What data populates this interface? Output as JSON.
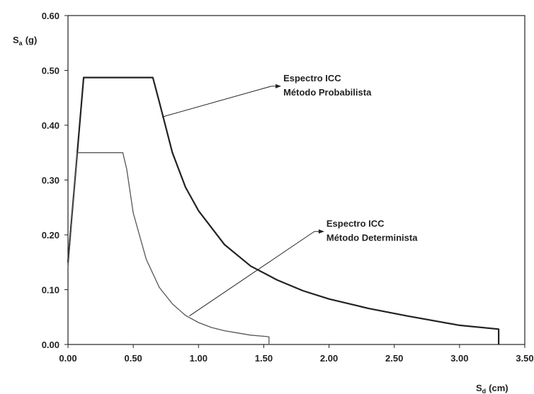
{
  "chart_data": {
    "type": "line",
    "xlabel": "Sd (cm)",
    "xlabel_main": "S",
    "xlabel_sub": "d",
    "xlabel_unit": "(cm)",
    "ylabel": "Sa (g)",
    "ylabel_main": "S",
    "ylabel_sub": "a",
    "ylabel_unit": "(g)",
    "xlim": [
      0,
      3.5
    ],
    "ylim": [
      0,
      0.6
    ],
    "xticks": [
      "0.00",
      "0.50",
      "1.00",
      "1.50",
      "2.00",
      "2.50",
      "3.00",
      "3.50"
    ],
    "yticks": [
      "0.00",
      "0.10",
      "0.20",
      "0.30",
      "0.40",
      "0.50",
      "0.60"
    ],
    "grid": false,
    "series": [
      {
        "name": "Espectro ICC Método Probabilista",
        "color": "#222222",
        "x": [
          0,
          0.12,
          0.65,
          0.7,
          0.8,
          0.9,
          1.0,
          1.2,
          1.4,
          1.6,
          1.8,
          2.0,
          2.3,
          2.6,
          3.0,
          3.3,
          3.3
        ],
        "y": [
          0.15,
          0.487,
          0.487,
          0.442,
          0.35,
          0.287,
          0.244,
          0.182,
          0.143,
          0.118,
          0.098,
          0.083,
          0.066,
          0.052,
          0.035,
          0.028,
          0.0
        ]
      },
      {
        "name": "Espectro ICC Método Determinista",
        "color": "#555555",
        "x": [
          0,
          0.07,
          0.42,
          0.45,
          0.5,
          0.6,
          0.7,
          0.8,
          0.9,
          1.0,
          1.1,
          1.2,
          1.3,
          1.4,
          1.5,
          1.54,
          1.54
        ],
        "y": [
          0.14,
          0.35,
          0.35,
          0.32,
          0.24,
          0.155,
          0.104,
          0.074,
          0.053,
          0.04,
          0.031,
          0.025,
          0.021,
          0.017,
          0.015,
          0.014,
          0.0
        ]
      }
    ],
    "annotations": [
      {
        "lines": [
          "Espectro  ICC",
          "Método Probabilista"
        ],
        "target_x": 0.72,
        "target_y": 0.415,
        "text_x": 1.65,
        "text_y": 0.475
      },
      {
        "lines": [
          "Espectro  ICC",
          "Método Determinista"
        ],
        "target_x": 0.93,
        "target_y": 0.052,
        "text_x": 1.98,
        "text_y": 0.21
      }
    ]
  }
}
